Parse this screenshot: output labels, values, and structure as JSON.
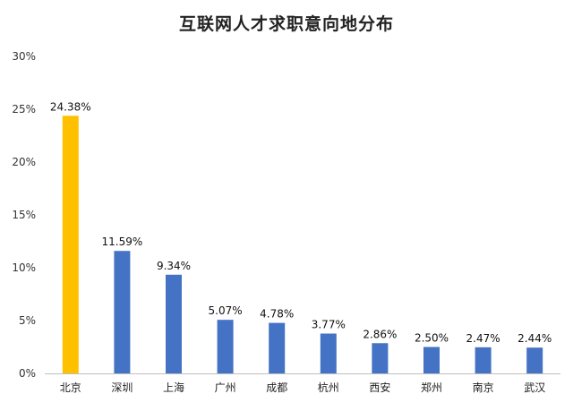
{
  "chart_data": {
    "type": "bar",
    "title": "互联网人才求职意向地分布",
    "xlabel": "",
    "ylabel": "",
    "ylim": [
      0,
      30
    ],
    "yticks": [
      "0%",
      "5%",
      "10%",
      "15%",
      "20%",
      "25%",
      "30%"
    ],
    "grid": false,
    "legend": "none",
    "categories": [
      "北京",
      "深圳",
      "上海",
      "广州",
      "成都",
      "杭州",
      "西安",
      "郑州",
      "南京",
      "武汉"
    ],
    "values": [
      24.38,
      11.59,
      9.34,
      5.07,
      4.78,
      3.77,
      2.86,
      2.5,
      2.47,
      2.44
    ],
    "data_labels": [
      "24.38%",
      "11.59%",
      "9.34%",
      "5.07%",
      "4.78%",
      "3.77%",
      "2.86%",
      "2.50%",
      "2.47%",
      "2.44%"
    ],
    "colors": {
      "default": "#4472c4",
      "highlight": "#ffc000",
      "highlight_index": 0,
      "axis": "#bfbfbf"
    }
  }
}
